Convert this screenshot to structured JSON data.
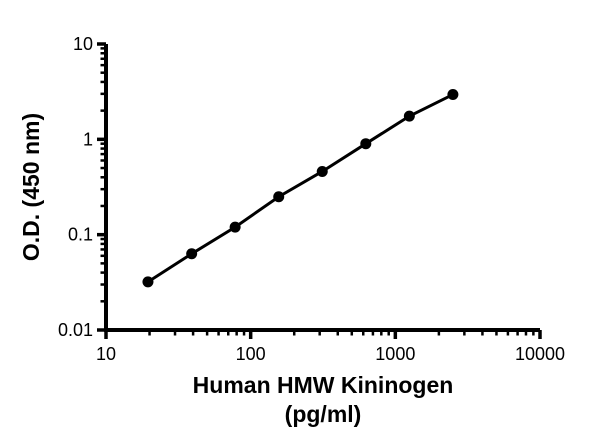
{
  "chart_data": {
    "type": "scatter",
    "title": "",
    "xlabel": "Human HMW Kininogen",
    "xlabel_unit": "(pg/ml)",
    "ylabel": "O.D. (450 nm)",
    "xscale": "log",
    "yscale": "log",
    "xlim": [
      10,
      10000
    ],
    "ylim": [
      0.01,
      10
    ],
    "x_ticks": {
      "values": [
        10,
        100,
        1000,
        10000
      ],
      "labels": [
        "10",
        "100",
        "1000",
        "10000"
      ]
    },
    "y_ticks": {
      "values": [
        0.01,
        0.1,
        1,
        10
      ],
      "labels": [
        "0.01",
        "0.1",
        "1",
        "10"
      ]
    },
    "grid": false,
    "legend": false,
    "colors": {
      "background": "#ffffff",
      "axis": "#000000",
      "series": "#000000"
    },
    "series": [
      {
        "marker": "filled-circle",
        "line": "solid",
        "x": [
          19.5,
          39.1,
          78.1,
          156.3,
          312.5,
          625,
          1250,
          2500
        ],
        "y": [
          0.032,
          0.063,
          0.12,
          0.25,
          0.46,
          0.9,
          1.75,
          2.95
        ]
      }
    ]
  }
}
